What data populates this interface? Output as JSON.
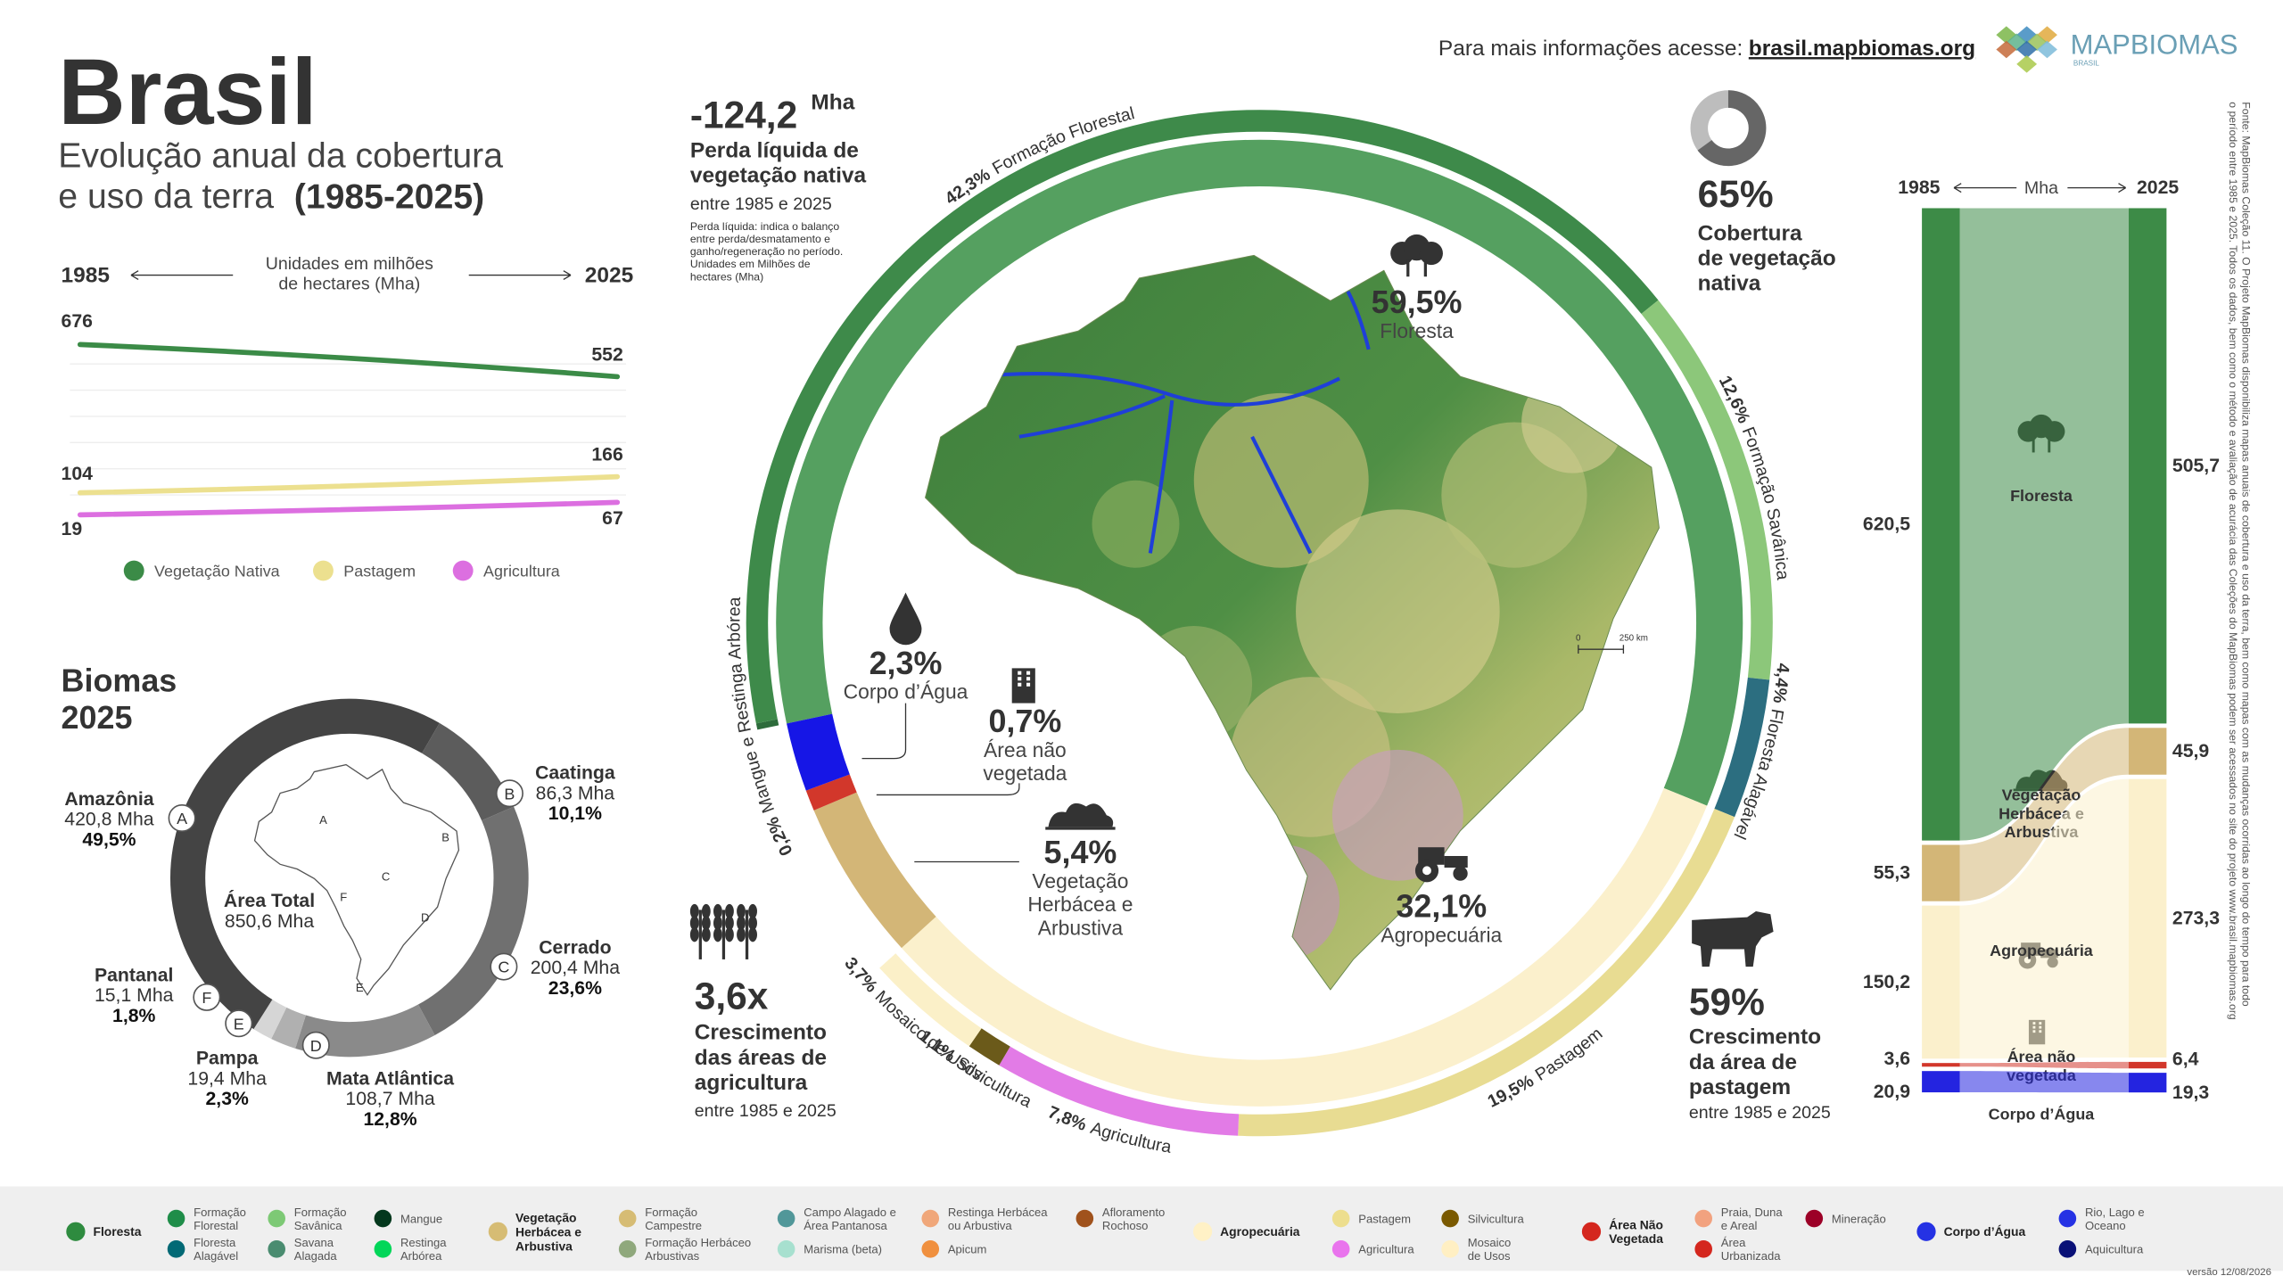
{
  "header": {
    "title": "Brasil",
    "subtitle": "Evolução anual da cobertura\ne uso da terra",
    "period": "(1985-2025)",
    "info_label": "Para mais informações acesse:",
    "info_link": "brasil.mapbiomas.org",
    "logo": "MAPBIOMAS",
    "logo_sub": "BRASIL"
  },
  "trend": {
    "type": "line",
    "categories": [
      "1985",
      "2025"
    ],
    "units": "Unidades em milhões\nde hectares (Mha)",
    "series": [
      {
        "name": "Vegetação Nativa",
        "color": "#3b8b47",
        "values": [
          676,
          552
        ]
      },
      {
        "name": "Pastagem",
        "color": "#ece08f",
        "values": [
          104,
          166
        ]
      },
      {
        "name": "Agricultura",
        "color": "#dc6fe0",
        "values": [
          19,
          67
        ]
      }
    ]
  },
  "biomes": {
    "type": "pie",
    "title": "Biomas\n2025",
    "total_label": "Área Total",
    "total_value": "850,6 Mha",
    "items": [
      {
        "letter": "A",
        "name": "Amazônia",
        "area": "420,8 Mha",
        "value": 49.5,
        "value_label": "49,5%",
        "color": "#444444"
      },
      {
        "letter": "B",
        "name": "Caatinga",
        "area": "86,3 Mha",
        "value": 10.1,
        "value_label": "10,1%",
        "color": "#5c5c5c"
      },
      {
        "letter": "C",
        "name": "Cerrado",
        "area": "200,4 Mha",
        "value": 23.6,
        "value_label": "23,6%",
        "color": "#707070"
      },
      {
        "letter": "D",
        "name": "Mata Atlântica",
        "area": "108,7 Mha",
        "value": 12.8,
        "value_label": "12,8%",
        "color": "#8a8a8a"
      },
      {
        "letter": "E",
        "name": "Pampa",
        "area": "19,4 Mha",
        "value": 2.3,
        "value_label": "2,3%",
        "color": "#b0b0b0"
      },
      {
        "letter": "F",
        "name": "Pantanal",
        "area": "15,1 Mha",
        "value": 1.8,
        "value_label": "1,8%",
        "color": "#d6d6d6"
      }
    ]
  },
  "ring": {
    "type": "donut",
    "inner": {
      "categories": [
        "Floresta",
        "Agropecuária",
        "Vegetação\nHerbácea e\nArbustiva",
        "Área não\nvegetada",
        "Corpo d’Água"
      ],
      "values": [
        59.5,
        32.1,
        5.4,
        0.7,
        2.3
      ],
      "value_labels": [
        "59,5%",
        "32,1%",
        "5,4%",
        "0,7%",
        "2,3%"
      ],
      "colors": [
        "#55a060",
        "#fbf0cc",
        "#d3b677",
        "#d2372b",
        "#1616e6"
      ]
    },
    "outer": {
      "categories": [
        "Mangue e Restinga Arbórea",
        "Formação Florestal",
        "Formação Savânica",
        "Floresta Alagável",
        "Pastagem",
        "Agricultura",
        "Silvicultura",
        "Mosaico de Usos"
      ],
      "values": [
        0.2,
        42.3,
        12.6,
        4.4,
        19.5,
        7.8,
        1.1,
        3.7
      ],
      "value_labels": [
        "0,2%",
        "42,3%",
        "12,6%",
        "4,4%",
        "19,5%",
        "7,8%",
        "1,1%",
        "3,7%"
      ],
      "colors": [
        "#2d6b3b",
        "#3e8a4a",
        "#8cc77a",
        "#2c6e80",
        "#e8dc92",
        "#e27be6",
        "#6b5a1a",
        "#fbf0c8"
      ]
    }
  },
  "map": {
    "scale_zero": "0",
    "scale_distance": "250 km"
  },
  "stats": {
    "loss": {
      "value": "-124,2",
      "unit": "Mha",
      "label": "Perda líquida de\nvegetação nativa",
      "period": "entre 1985 e 2025",
      "note": "Perda líquida: indica o balanço\nentre perda/desmatamento e\nganho/regeneração no período.\nUnidades em Milhões de\nhectares (Mha)"
    },
    "native": {
      "value": 65,
      "value_label": "65%",
      "label": "Cobertura\nde vegetação\nnativa"
    },
    "agriculture": {
      "value": "3,6x",
      "label": "Crescimento\ndas áreas de\nagricultura",
      "period": "entre 1985 e 2025"
    },
    "pasture": {
      "value": "59%",
      "label": "Crescimento\nda área de\npastagem",
      "period": "entre 1985 e 2025"
    }
  },
  "sankey": {
    "type": "sankey",
    "start": "1985",
    "unit": "Mha",
    "end": "2025",
    "categories": [
      "Floresta",
      "Vegetação\nHerbácea e\nArbustiva",
      "Agropecuária",
      "Área não\nvegetada",
      "Corpo d’Água"
    ],
    "colors": [
      "#3d8b47",
      "#d3b677",
      "#fbf0cc",
      "#d2372b",
      "#2424e0"
    ],
    "start_values": [
      620.5,
      55.3,
      150.2,
      3.6,
      20.9
    ],
    "start_labels": [
      "620,5",
      "55,3",
      "150,2",
      "3,6",
      "20,9"
    ],
    "end_values": [
      505.7,
      45.9,
      273.3,
      6.4,
      19.3
    ],
    "end_labels": [
      "505,7",
      "45,9",
      "273,3",
      "6,4",
      "19,3"
    ]
  },
  "legend": {
    "groups": [
      {
        "name": "Floresta",
        "color": "#2e8b3f",
        "items": [
          {
            "name": "Formação\nFlorestal",
            "color": "#1f8d49"
          },
          {
            "name": "Floresta\nAlagável",
            "color": "#026975"
          },
          {
            "name": "Formação\nSavânica",
            "color": "#7dc975"
          },
          {
            "name": "Savana\nAlagada",
            "color": "#4a8c70"
          },
          {
            "name": "Mangue",
            "color": "#04381d"
          },
          {
            "name": "Restinga\nArbórea",
            "color": "#02d659"
          }
        ]
      },
      {
        "name": "Vegetação\nHerbácea e\nArbustiva",
        "color": "#d6bc74",
        "items": [
          {
            "name": "Formação\nCampestre",
            "color": "#d6bc74"
          },
          {
            "name": "Formação Herbáceo\nArbustivas",
            "color": "#8fa87c"
          },
          {
            "name": "Campo Alagado e\nÁrea Pantanosa",
            "color": "#519799"
          },
          {
            "name": "Marisma (beta)",
            "color": "#a7e0cf"
          },
          {
            "name": "Restinga Herbácea\nou Arbustiva",
            "color": "#f0a77a"
          },
          {
            "name": "Apicum",
            "color": "#f0903f"
          },
          {
            "name": "Afloramento\nRochoso",
            "color": "#a0521c"
          }
        ]
      },
      {
        "name": "Agropecuária",
        "color": "#fff1c6",
        "items": [
          {
            "name": "Pastagem",
            "color": "#edde8e"
          },
          {
            "name": "Agricultura",
            "color": "#e974ed"
          },
          {
            "name": "Silvicultura",
            "color": "#7a5900"
          },
          {
            "name": "Mosaico\nde Usos",
            "color": "#ffefc3"
          }
        ]
      },
      {
        "name": "Área Não\nVegetada",
        "color": "#d4271e",
        "items": [
          {
            "name": "Praia, Duna\ne Areal",
            "color": "#f2a27f"
          },
          {
            "name": "Área\nUrbanizada",
            "color": "#d4271e"
          },
          {
            "name": "Mineração",
            "color": "#9c0027"
          }
        ]
      },
      {
        "name": "Corpo d’Água",
        "color": "#2532e4",
        "items": [
          {
            "name": "Rio, Lago e\nOceano",
            "color": "#2532e4"
          },
          {
            "name": "Aquicultura",
            "color": "#091077"
          }
        ]
      }
    ]
  },
  "source": "Fonte: MapBiomas Coleção 11. O Projeto MapBiomas disponibiliza mapas anuais de cobertura e uso da terra, bem como mapas com as mudanças ocorridas ao longo do tempo para todo\no período entre 1985 e 2025. Todos os dados, bem como o método e avaliação de acurácia das Coleções do MapBiomas podem ser acessados no site do projeto www.brasil.mapbiomas.org",
  "version": "versão 12/08/2026"
}
